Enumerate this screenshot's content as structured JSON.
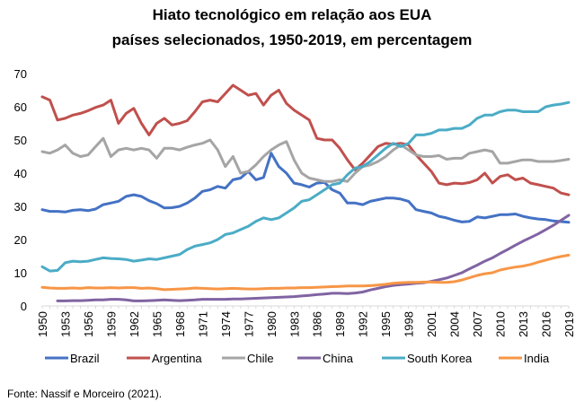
{
  "title_line1": "Hiato tecnológico em relação aos EUA",
  "title_line2": "países selecionados, 1950-2019, em percentagem",
  "source": "Fonte: Nassif e Morceiro (2021).",
  "chart_data": {
    "type": "line",
    "title": "Hiato tecnológico em relação aos EUA países selecionados, 1950-2019, em percentagem",
    "xlabel": "",
    "ylabel": "",
    "xlim": [
      1950,
      2019
    ],
    "ylim": [
      0,
      70
    ],
    "y_ticks": [
      0,
      10,
      20,
      30,
      40,
      50,
      60,
      70
    ],
    "x_ticks": [
      1950,
      1953,
      1956,
      1959,
      1962,
      1965,
      1968,
      1971,
      1974,
      1977,
      1980,
      1983,
      1986,
      1989,
      1992,
      1995,
      1998,
      2001,
      2004,
      2007,
      2010,
      2013,
      2016,
      2019
    ],
    "grid": false,
    "legend_position": "bottom",
    "series": [
      {
        "name": "Brazil",
        "color": "#4472c4",
        "x": [
          1950,
          1951,
          1952,
          1953,
          1954,
          1955,
          1956,
          1957,
          1958,
          1959,
          1960,
          1961,
          1962,
          1963,
          1964,
          1965,
          1966,
          1967,
          1968,
          1969,
          1970,
          1971,
          1972,
          1973,
          1974,
          1975,
          1976,
          1977,
          1978,
          1979,
          1980,
          1981,
          1982,
          1983,
          1984,
          1985,
          1986,
          1987,
          1988,
          1989,
          1990,
          1991,
          1992,
          1993,
          1994,
          1995,
          1996,
          1997,
          1998,
          1999,
          2000,
          2001,
          2002,
          2003,
          2004,
          2005,
          2006,
          2007,
          2008,
          2009,
          2010,
          2011,
          2012,
          2013,
          2014,
          2015,
          2016,
          2017,
          2018,
          2019
        ],
        "y": [
          29,
          28.5,
          28.5,
          28.3,
          28.8,
          29,
          28.7,
          29.2,
          30.5,
          31,
          31.5,
          33,
          33.5,
          33,
          31.7,
          30.8,
          29.5,
          29.6,
          30,
          31,
          32.5,
          34.5,
          35,
          36,
          35.5,
          38,
          38.5,
          40.5,
          38,
          38.7,
          46,
          42,
          40,
          37,
          36.5,
          35.8,
          37,
          37.2,
          35,
          34,
          31,
          31,
          30.5,
          31.5,
          32,
          32.5,
          32.5,
          32.2,
          31.5,
          29,
          28.5,
          28,
          27,
          26.5,
          25.8,
          25.3,
          25.5,
          26.8,
          26.5,
          27,
          27.5,
          27.5,
          27.7,
          27,
          26.5,
          26.2,
          26,
          25.6,
          25.4,
          25.2
        ]
      },
      {
        "name": "Argentina",
        "color": "#c0504d",
        "x": [
          1950,
          1951,
          1952,
          1953,
          1954,
          1955,
          1956,
          1957,
          1958,
          1959,
          1960,
          1961,
          1962,
          1963,
          1964,
          1965,
          1966,
          1967,
          1968,
          1969,
          1970,
          1971,
          1972,
          1973,
          1974,
          1975,
          1976,
          1977,
          1978,
          1979,
          1980,
          1981,
          1982,
          1983,
          1984,
          1985,
          1986,
          1987,
          1988,
          1989,
          1990,
          1991,
          1992,
          1993,
          1994,
          1995,
          1996,
          1997,
          1998,
          1999,
          2000,
          2001,
          2002,
          2003,
          2004,
          2005,
          2006,
          2007,
          2008,
          2009,
          2010,
          2011,
          2012,
          2013,
          2014,
          2015,
          2016,
          2017,
          2018,
          2019
        ],
        "y": [
          63,
          62,
          56,
          56.5,
          57.5,
          58,
          58.8,
          59.8,
          60.5,
          62,
          55,
          58,
          59.5,
          55,
          51.5,
          55,
          56.5,
          54.5,
          55,
          55.8,
          58.5,
          61.5,
          62,
          61.5,
          64,
          66.5,
          65,
          63.5,
          64,
          60.5,
          63.5,
          65,
          61,
          59,
          57.5,
          56,
          50.5,
          50,
          50,
          47.5,
          44,
          41,
          43,
          45.5,
          48,
          49,
          48.7,
          49,
          48.5,
          45.5,
          43,
          40.5,
          37,
          36.5,
          37,
          36.8,
          37.2,
          38,
          40,
          37,
          39,
          39.5,
          38,
          38.5,
          37,
          36.5,
          36,
          35.5,
          34,
          33.5
        ]
      },
      {
        "name": "Chile",
        "color": "#a5a5a5",
        "x": [
          1950,
          1951,
          1952,
          1953,
          1954,
          1955,
          1956,
          1957,
          1958,
          1959,
          1960,
          1961,
          1962,
          1963,
          1964,
          1965,
          1966,
          1967,
          1968,
          1969,
          1970,
          1971,
          1972,
          1973,
          1974,
          1975,
          1976,
          1977,
          1978,
          1979,
          1980,
          1981,
          1982,
          1983,
          1984,
          1985,
          1986,
          1987,
          1988,
          1989,
          1990,
          1991,
          1992,
          1993,
          1994,
          1995,
          1996,
          1997,
          1998,
          1999,
          2000,
          2001,
          2002,
          2003,
          2004,
          2005,
          2006,
          2007,
          2008,
          2009,
          2010,
          2011,
          2012,
          2013,
          2014,
          2015,
          2016,
          2017,
          2018,
          2019
        ],
        "y": [
          46.5,
          46,
          47,
          48.5,
          46,
          45,
          45.5,
          48,
          50.5,
          45,
          47,
          47.5,
          47,
          47.5,
          47,
          44.5,
          47.5,
          47.5,
          47,
          47.8,
          48.5,
          49,
          50,
          47,
          42,
          45,
          40,
          40.5,
          42.5,
          45,
          47,
          48.5,
          49.5,
          44,
          40,
          38.5,
          38,
          37.5,
          37.5,
          38,
          37.5,
          40,
          42,
          42.5,
          43.5,
          45,
          47,
          48.5,
          47,
          45.5,
          45,
          45,
          45.3,
          44.2,
          44.5,
          44.5,
          46,
          46.5,
          47,
          46.5,
          43,
          43,
          43.5,
          44,
          44,
          43.5,
          43.5,
          43.5,
          43.8,
          44.2
        ]
      },
      {
        "name": "China",
        "color": "#8064a2",
        "x": [
          1952,
          1953,
          1954,
          1955,
          1956,
          1957,
          1958,
          1959,
          1960,
          1961,
          1962,
          1963,
          1964,
          1965,
          1966,
          1967,
          1968,
          1969,
          1970,
          1971,
          1972,
          1973,
          1974,
          1975,
          1976,
          1977,
          1978,
          1979,
          1980,
          1981,
          1982,
          1983,
          1984,
          1985,
          1986,
          1987,
          1988,
          1989,
          1990,
          1991,
          1992,
          1993,
          1994,
          1995,
          1996,
          1997,
          1998,
          1999,
          2000,
          2001,
          2002,
          2003,
          2004,
          2005,
          2006,
          2007,
          2008,
          2009,
          2010,
          2011,
          2012,
          2013,
          2014,
          2015,
          2016,
          2017,
          2018,
          2019
        ],
        "y": [
          1.5,
          1.5,
          1.6,
          1.6,
          1.7,
          1.8,
          1.8,
          2,
          2,
          1.8,
          1.5,
          1.5,
          1.6,
          1.7,
          1.8,
          1.7,
          1.6,
          1.7,
          1.8,
          2,
          2,
          2,
          2,
          2.1,
          2.1,
          2.2,
          2.3,
          2.4,
          2.5,
          2.6,
          2.7,
          2.8,
          3,
          3.2,
          3.4,
          3.6,
          3.8,
          3.8,
          3.7,
          3.9,
          4.2,
          4.8,
          5.3,
          5.8,
          6.2,
          6.4,
          6.6,
          6.8,
          7,
          7.4,
          7.9,
          8.4,
          9.2,
          10,
          11.2,
          12.3,
          13.5,
          14.5,
          15.8,
          17,
          18.3,
          19.5,
          20.6,
          21.7,
          23,
          24.3,
          25.8,
          27.3
        ]
      },
      {
        "name": "South Korea",
        "color": "#4bacc6",
        "x": [
          1950,
          1951,
          1952,
          1953,
          1954,
          1955,
          1956,
          1957,
          1958,
          1959,
          1960,
          1961,
          1962,
          1963,
          1964,
          1965,
          1966,
          1967,
          1968,
          1969,
          1970,
          1971,
          1972,
          1973,
          1974,
          1975,
          1976,
          1977,
          1978,
          1979,
          1980,
          1981,
          1982,
          1983,
          1984,
          1985,
          1986,
          1987,
          1988,
          1989,
          1990,
          1991,
          1992,
          1993,
          1994,
          1995,
          1996,
          1997,
          1998,
          1999,
          2000,
          2001,
          2002,
          2003,
          2004,
          2005,
          2006,
          2007,
          2008,
          2009,
          2010,
          2011,
          2012,
          2013,
          2014,
          2015,
          2016,
          2017,
          2018,
          2019
        ],
        "y": [
          11.8,
          10.5,
          10.7,
          13,
          13.5,
          13.3,
          13.5,
          14,
          14.5,
          14.3,
          14.2,
          14,
          13.5,
          13.8,
          14.2,
          14,
          14.5,
          15,
          15.5,
          17,
          18,
          18.5,
          19,
          20,
          21.5,
          22,
          23,
          24,
          25.5,
          26.5,
          26,
          26.5,
          28,
          29.5,
          31.5,
          32,
          33.5,
          35,
          36.5,
          37,
          39.5,
          41.5,
          42,
          43.5,
          45.5,
          47.5,
          49,
          48,
          49,
          51.5,
          51.5,
          52,
          53,
          53,
          53.5,
          53.5,
          54.5,
          56.5,
          57.5,
          57.5,
          58.5,
          59,
          59,
          58.5,
          58.5,
          58.5,
          60,
          60.5,
          60.8,
          61.3
        ]
      },
      {
        "name": "India",
        "color": "#f79646",
        "x": [
          1950,
          1951,
          1952,
          1953,
          1954,
          1955,
          1956,
          1957,
          1958,
          1959,
          1960,
          1961,
          1962,
          1963,
          1964,
          1965,
          1966,
          1967,
          1968,
          1969,
          1970,
          1971,
          1972,
          1973,
          1974,
          1975,
          1976,
          1977,
          1978,
          1979,
          1980,
          1981,
          1982,
          1983,
          1984,
          1985,
          1986,
          1987,
          1988,
          1989,
          1990,
          1991,
          1992,
          1993,
          1994,
          1995,
          1996,
          1997,
          1998,
          1999,
          2000,
          2001,
          2002,
          2003,
          2004,
          2005,
          2006,
          2007,
          2008,
          2009,
          2010,
          2011,
          2012,
          2013,
          2014,
          2015,
          2016,
          2017,
          2018,
          2019
        ],
        "y": [
          5.6,
          5.4,
          5.3,
          5.3,
          5.4,
          5.3,
          5.5,
          5.4,
          5.4,
          5.5,
          5.4,
          5.5,
          5.5,
          5.3,
          5.4,
          5.2,
          4.9,
          5,
          5.1,
          5.2,
          5.4,
          5.3,
          5.2,
          5.1,
          5.2,
          5.3,
          5.2,
          5.1,
          5.1,
          5.2,
          5.3,
          5.3,
          5.4,
          5.4,
          5.5,
          5.5,
          5.6,
          5.7,
          5.8,
          5.9,
          6,
          6,
          6,
          6.1,
          6.3,
          6.5,
          6.8,
          7,
          7.1,
          7.1,
          7.2,
          7.2,
          7.1,
          7.1,
          7.3,
          7.8,
          8.5,
          9.2,
          9.7,
          10,
          10.8,
          11.3,
          11.7,
          12,
          12.5,
          13.2,
          13.8,
          14.4,
          14.9,
          15.3
        ]
      }
    ]
  }
}
